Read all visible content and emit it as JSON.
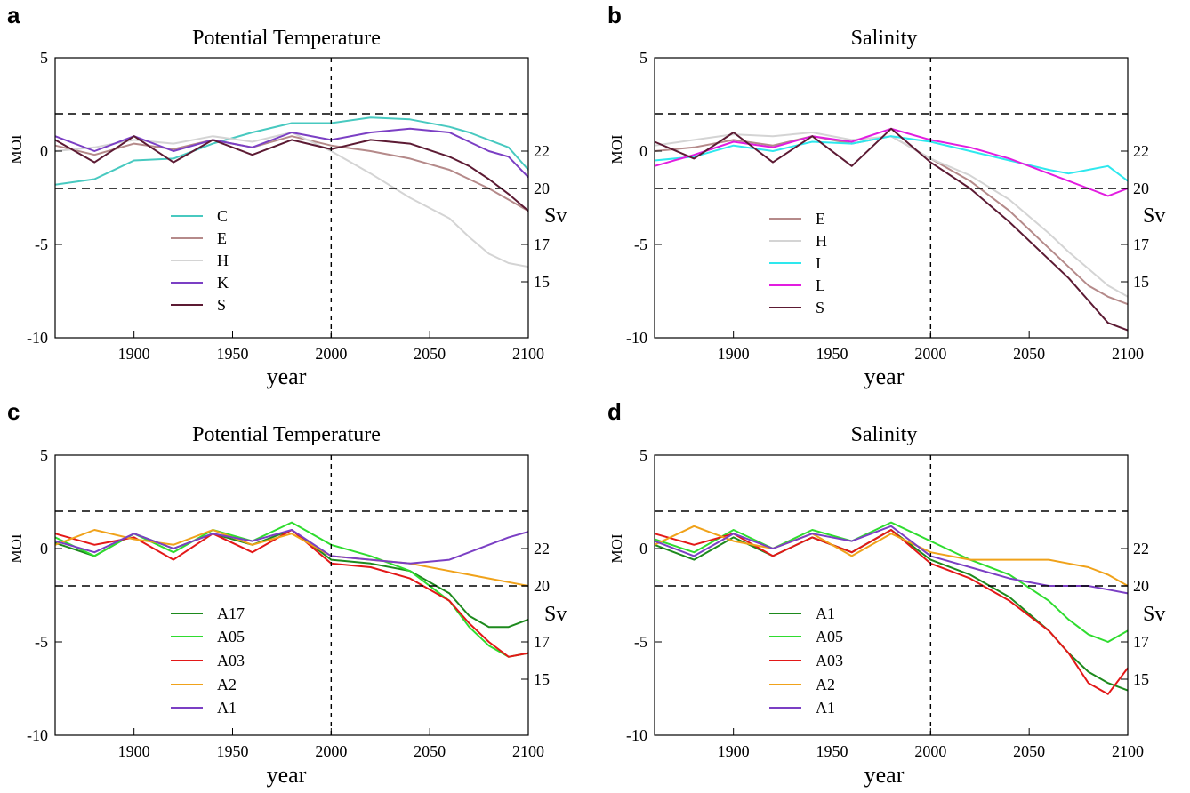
{
  "figure": {
    "panels": [
      {
        "letter": "a",
        "title": "Potential Temperature",
        "xlabel": "year",
        "ylabel": "MOI",
        "right_label": "Sv",
        "legend": [
          "C",
          "E",
          "H",
          "K",
          "S"
        ]
      },
      {
        "letter": "b",
        "title": "Salinity",
        "xlabel": "year",
        "ylabel": "MOI",
        "right_label": "Sv",
        "legend": [
          "E",
          "H",
          "I",
          "L",
          "S"
        ]
      },
      {
        "letter": "c",
        "title": "Potential Temperature",
        "xlabel": "year",
        "ylabel": "MOI",
        "right_label": "Sv",
        "legend": [
          "A17",
          "A05",
          "A03",
          "A2",
          "A1"
        ]
      },
      {
        "letter": "d",
        "title": "Salinity",
        "xlabel": "year",
        "ylabel": "MOI",
        "right_label": "Sv",
        "legend": [
          "A1",
          "A05",
          "A03",
          "A2",
          "A1"
        ]
      }
    ]
  },
  "chart_data": [
    {
      "type": "line",
      "panel": "a",
      "title": "Potential Temperature",
      "xlabel": "year",
      "ylabel": "MOI",
      "xlim": [
        1860,
        2100
      ],
      "ylim": [
        -10,
        5
      ],
      "xticks": [
        "1900",
        "1950",
        "2000",
        "2050",
        "2100"
      ],
      "yticks": [
        "5",
        "0",
        "-5",
        "-10"
      ],
      "right_axis_label": "Sv",
      "right_ticks": [
        {
          "at": 0,
          "label": "22"
        },
        {
          "at": -2,
          "label": "20"
        },
        {
          "at": -5,
          "label": "17"
        },
        {
          "at": -7,
          "label": "15"
        }
      ],
      "reference_lines": {
        "horizontal_dashed": [
          2,
          -2
        ],
        "vertical_dashed": 2000
      },
      "grid": false,
      "legend_position": "lower-left",
      "series": [
        {
          "name": "C",
          "color": "#48c9c0",
          "x": [
            1860,
            1880,
            1900,
            1920,
            1940,
            1960,
            1980,
            2000,
            2020,
            2040,
            2060,
            2070,
            2080,
            2090,
            2100
          ],
          "values": [
            -1.8,
            -1.5,
            -0.5,
            -0.4,
            0.4,
            1.0,
            1.5,
            1.5,
            1.8,
            1.7,
            1.3,
            1.0,
            0.6,
            0.2,
            -1.0
          ]
        },
        {
          "name": "E",
          "color": "#b58a8a",
          "x": [
            1860,
            1880,
            1900,
            1920,
            1940,
            1960,
            1980,
            2000,
            2020,
            2040,
            2060,
            2070,
            2080,
            2090,
            2100
          ],
          "values": [
            0.3,
            -0.2,
            0.4,
            0.1,
            0.6,
            0.2,
            0.8,
            0.3,
            0.0,
            -0.4,
            -1.0,
            -1.5,
            -2.0,
            -2.6,
            -3.2
          ]
        },
        {
          "name": "H",
          "color": "#d4d4d4",
          "x": [
            1860,
            1880,
            1900,
            1920,
            1940,
            1960,
            1980,
            2000,
            2020,
            2040,
            2060,
            2070,
            2080,
            2090,
            2100
          ],
          "values": [
            0.0,
            0.2,
            0.6,
            0.4,
            0.8,
            0.5,
            1.0,
            0.0,
            -1.2,
            -2.5,
            -3.6,
            -4.6,
            -5.5,
            -6.0,
            -6.2
          ]
        },
        {
          "name": "K",
          "color": "#7b3fc4",
          "x": [
            1860,
            1880,
            1900,
            1920,
            1940,
            1960,
            1980,
            2000,
            2020,
            2040,
            2060,
            2070,
            2080,
            2090,
            2100
          ],
          "values": [
            0.8,
            0.0,
            0.8,
            0.0,
            0.6,
            0.2,
            1.0,
            0.6,
            1.0,
            1.2,
            1.0,
            0.5,
            0.0,
            -0.3,
            -1.4
          ]
        },
        {
          "name": "S",
          "color": "#5c1a33",
          "x": [
            1860,
            1880,
            1900,
            1920,
            1940,
            1960,
            1980,
            2000,
            2020,
            2040,
            2060,
            2070,
            2080,
            2090,
            2100
          ],
          "values": [
            0.6,
            -0.6,
            0.8,
            -0.6,
            0.6,
            -0.2,
            0.6,
            0.1,
            0.6,
            0.4,
            -0.3,
            -0.8,
            -1.5,
            -2.3,
            -3.2
          ]
        }
      ]
    },
    {
      "type": "line",
      "panel": "b",
      "title": "Salinity",
      "xlabel": "year",
      "ylabel": "MOI",
      "xlim": [
        1860,
        2100
      ],
      "ylim": [
        -10,
        5
      ],
      "xticks": [
        "1900",
        "1950",
        "2000",
        "2050",
        "2100"
      ],
      "yticks": [
        "5",
        "0",
        "-5",
        "-10"
      ],
      "right_axis_label": "Sv",
      "right_ticks": [
        {
          "at": 0,
          "label": "22"
        },
        {
          "at": -2,
          "label": "20"
        },
        {
          "at": -5,
          "label": "17"
        },
        {
          "at": -7,
          "label": "15"
        }
      ],
      "reference_lines": {
        "horizontal_dashed": [
          2,
          -2
        ],
        "vertical_dashed": 2000
      },
      "grid": false,
      "legend_position": "lower-left",
      "series": [
        {
          "name": "E",
          "color": "#b58a8a",
          "x": [
            1860,
            1880,
            1900,
            1920,
            1940,
            1960,
            1980,
            2000,
            2020,
            2040,
            2060,
            2070,
            2080,
            2090,
            2100
          ],
          "values": [
            0.0,
            0.2,
            0.6,
            0.3,
            0.8,
            0.4,
            0.8,
            -0.4,
            -1.6,
            -3.2,
            -5.2,
            -6.2,
            -7.2,
            -7.8,
            -8.2
          ]
        },
        {
          "name": "H",
          "color": "#d4d4d4",
          "x": [
            1860,
            1880,
            1900,
            1920,
            1940,
            1960,
            1980,
            2000,
            2020,
            2040,
            2060,
            2070,
            2080,
            2090,
            2100
          ],
          "values": [
            0.3,
            0.6,
            0.9,
            0.8,
            1.0,
            0.6,
            0.8,
            -0.4,
            -1.3,
            -2.6,
            -4.4,
            -5.4,
            -6.3,
            -7.2,
            -7.8
          ]
        },
        {
          "name": "I",
          "color": "#2ee8ee",
          "x": [
            1860,
            1880,
            1900,
            1920,
            1940,
            1960,
            1980,
            2000,
            2020,
            2040,
            2060,
            2070,
            2080,
            2090,
            2100
          ],
          "values": [
            -0.5,
            -0.3,
            0.3,
            0.0,
            0.5,
            0.4,
            0.8,
            0.5,
            0.0,
            -0.5,
            -1.0,
            -1.2,
            -1.0,
            -0.8,
            -1.6
          ]
        },
        {
          "name": "L",
          "color": "#e21de0",
          "x": [
            1860,
            1880,
            1900,
            1920,
            1940,
            1960,
            1980,
            2000,
            2020,
            2040,
            2060,
            2070,
            2080,
            2090,
            2100
          ],
          "values": [
            -0.8,
            -0.2,
            0.5,
            0.2,
            0.8,
            0.5,
            1.2,
            0.6,
            0.2,
            -0.4,
            -1.2,
            -1.6,
            -2.0,
            -2.4,
            -2.0
          ]
        },
        {
          "name": "S",
          "color": "#5c1a33",
          "x": [
            1860,
            1880,
            1900,
            1920,
            1940,
            1960,
            1980,
            2000,
            2020,
            2040,
            2060,
            2070,
            2080,
            2090,
            2100
          ],
          "values": [
            0.5,
            -0.4,
            1.0,
            -0.6,
            0.8,
            -0.8,
            1.2,
            -0.6,
            -2.0,
            -3.8,
            -5.8,
            -6.8,
            -8.0,
            -9.2,
            -9.6
          ]
        }
      ]
    },
    {
      "type": "line",
      "panel": "c",
      "title": "Potential Temperature",
      "xlabel": "year",
      "ylabel": "MOI",
      "xlim": [
        1860,
        2100
      ],
      "ylim": [
        -10,
        5
      ],
      "xticks": [
        "1900",
        "1950",
        "2000",
        "2050",
        "2100"
      ],
      "yticks": [
        "5",
        "0",
        "-5",
        "-10"
      ],
      "right_axis_label": "Sv",
      "right_ticks": [
        {
          "at": 0,
          "label": "22"
        },
        {
          "at": -2,
          "label": "20"
        },
        {
          "at": -5,
          "label": "17"
        },
        {
          "at": -7,
          "label": "15"
        }
      ],
      "reference_lines": {
        "horizontal_dashed": [
          2,
          -2
        ],
        "vertical_dashed": 2000
      },
      "grid": false,
      "legend_position": "lower-left",
      "series": [
        {
          "name": "A17",
          "color": "#1d8a1d",
          "x": [
            1860,
            1880,
            1900,
            1920,
            1940,
            1960,
            1980,
            2000,
            2020,
            2040,
            2060,
            2070,
            2080,
            2090,
            2100
          ],
          "values": [
            0.3,
            -0.4,
            0.8,
            0.0,
            0.8,
            0.2,
            1.0,
            -0.6,
            -0.8,
            -1.2,
            -2.4,
            -3.6,
            -4.2,
            -4.2,
            -3.8
          ]
        },
        {
          "name": "A05",
          "color": "#2fdc2f",
          "x": [
            1860,
            1880,
            1900,
            1920,
            1940,
            1960,
            1980,
            2000,
            2020,
            2040,
            2060,
            2070,
            2080,
            2090,
            2100
          ],
          "values": [
            0.6,
            -0.4,
            0.8,
            -0.2,
            1.0,
            0.4,
            1.4,
            0.2,
            -0.4,
            -1.2,
            -2.8,
            -4.2,
            -5.2,
            -5.8,
            -5.6
          ]
        },
        {
          "name": "A03",
          "color": "#e31818",
          "x": [
            1860,
            1880,
            1900,
            1920,
            1940,
            1960,
            1980,
            2000,
            2020,
            2040,
            2060,
            2070,
            2080,
            2090,
            2100
          ],
          "values": [
            0.8,
            0.2,
            0.6,
            -0.6,
            0.8,
            -0.2,
            1.0,
            -0.8,
            -1.0,
            -1.6,
            -2.8,
            -4.0,
            -5.0,
            -5.8,
            -5.6
          ]
        },
        {
          "name": "A2",
          "color": "#f0a21a",
          "x": [
            1860,
            1880,
            1900,
            1920,
            1940,
            1960,
            1980,
            2000,
            2020,
            2040,
            2060,
            2070,
            2080,
            2090,
            2100
          ],
          "values": [
            0.2,
            1.0,
            0.5,
            0.2,
            1.0,
            0.2,
            0.8,
            -0.4,
            -0.6,
            -0.8,
            -1.2,
            -1.4,
            -1.6,
            -1.8,
            -2.0
          ]
        },
        {
          "name": "A1",
          "color": "#7b3fc4",
          "x": [
            1860,
            1880,
            1900,
            1920,
            1940,
            1960,
            1980,
            2000,
            2020,
            2040,
            2060,
            2070,
            2080,
            2090,
            2100
          ],
          "values": [
            0.4,
            -0.2,
            0.8,
            0.0,
            0.8,
            0.4,
            1.0,
            -0.4,
            -0.6,
            -0.8,
            -0.6,
            -0.2,
            0.2,
            0.6,
            0.9
          ]
        }
      ]
    },
    {
      "type": "line",
      "panel": "d",
      "title": "Salinity",
      "xlabel": "year",
      "ylabel": "MOI",
      "xlim": [
        1860,
        2100
      ],
      "ylim": [
        -10,
        5
      ],
      "xticks": [
        "1900",
        "1950",
        "2000",
        "2050",
        "2100"
      ],
      "yticks": [
        "5",
        "0",
        "-5",
        "-10"
      ],
      "right_axis_label": "Sv",
      "right_ticks": [
        {
          "at": 0,
          "label": "22"
        },
        {
          "at": -2,
          "label": "20"
        },
        {
          "at": -5,
          "label": "17"
        },
        {
          "at": -7,
          "label": "15"
        }
      ],
      "reference_lines": {
        "horizontal_dashed": [
          2,
          -2
        ],
        "vertical_dashed": 2000
      },
      "grid": false,
      "legend_position": "lower-left",
      "series": [
        {
          "name": "A1",
          "color": "#1d8a1d",
          "x": [
            1860,
            1880,
            1900,
            1920,
            1940,
            1960,
            1980,
            2000,
            2020,
            2040,
            2060,
            2070,
            2080,
            2090,
            2100
          ],
          "values": [
            0.2,
            -0.6,
            0.6,
            -0.4,
            0.6,
            -0.2,
            1.0,
            -0.6,
            -1.4,
            -2.6,
            -4.4,
            -5.6,
            -6.6,
            -7.2,
            -7.6
          ]
        },
        {
          "name": "A05",
          "color": "#2fdc2f",
          "x": [
            1860,
            1880,
            1900,
            1920,
            1940,
            1960,
            1980,
            2000,
            2020,
            2040,
            2060,
            2070,
            2080,
            2090,
            2100
          ],
          "values": [
            0.5,
            -0.2,
            1.0,
            0.0,
            1.0,
            0.4,
            1.4,
            0.4,
            -0.6,
            -1.4,
            -2.8,
            -3.8,
            -4.6,
            -5.0,
            -4.4
          ]
        },
        {
          "name": "A03",
          "color": "#e31818",
          "x": [
            1860,
            1880,
            1900,
            1920,
            1940,
            1960,
            1980,
            2000,
            2020,
            2040,
            2060,
            2070,
            2080,
            2090,
            2100
          ],
          "values": [
            0.8,
            0.2,
            0.8,
            -0.4,
            0.6,
            -0.2,
            1.0,
            -0.8,
            -1.6,
            -2.8,
            -4.4,
            -5.6,
            -7.2,
            -7.8,
            -6.4
          ]
        },
        {
          "name": "A2",
          "color": "#f0a21a",
          "x": [
            1860,
            1880,
            1900,
            1920,
            1940,
            1960,
            1980,
            2000,
            2020,
            2040,
            2060,
            2070,
            2080,
            2090,
            2100
          ],
          "values": [
            0.2,
            1.2,
            0.4,
            0.0,
            0.8,
            -0.4,
            0.8,
            -0.2,
            -0.6,
            -0.6,
            -0.6,
            -0.8,
            -1.0,
            -1.4,
            -2.0
          ]
        },
        {
          "name": "A1",
          "color": "#7b3fc4",
          "x": [
            1860,
            1880,
            1900,
            1920,
            1940,
            1960,
            1980,
            2000,
            2020,
            2040,
            2060,
            2070,
            2080,
            2090,
            2100
          ],
          "values": [
            0.4,
            -0.4,
            0.8,
            0.0,
            0.8,
            0.4,
            1.2,
            -0.4,
            -1.0,
            -1.6,
            -2.0,
            -2.0,
            -2.0,
            -2.2,
            -2.4
          ]
        }
      ]
    }
  ]
}
